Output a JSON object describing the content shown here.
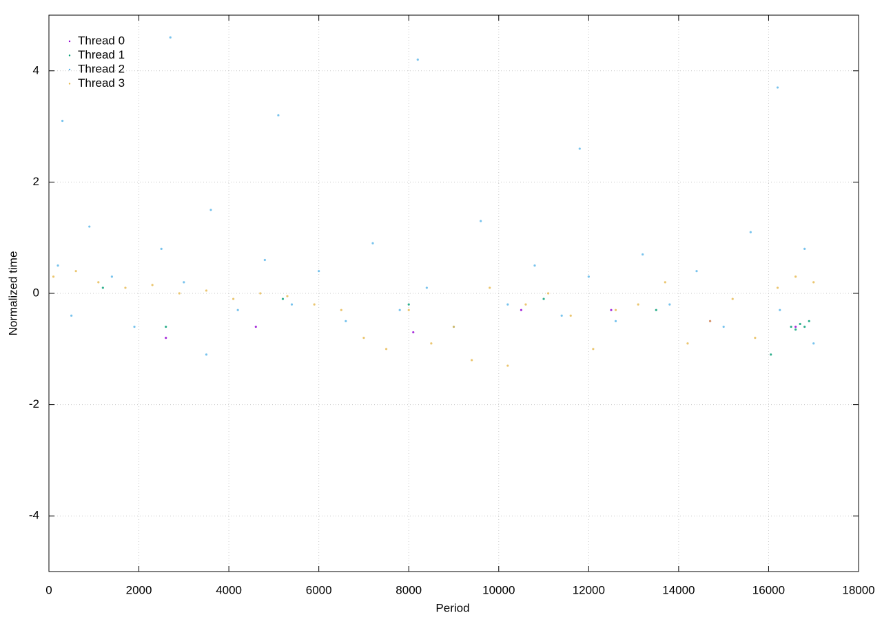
{
  "chart_data": {
    "type": "scatter",
    "xlabel": "Period",
    "ylabel": "Normalized time",
    "xlim": [
      0,
      18000
    ],
    "ylim": [
      -5,
      5
    ],
    "xticks": [
      0,
      2000,
      4000,
      6000,
      8000,
      10000,
      12000,
      14000,
      16000,
      18000
    ],
    "yticks": [
      -4,
      -2,
      0,
      2,
      4
    ],
    "grid": true,
    "legend": "upper-left",
    "series": [
      {
        "name": "Thread 0",
        "color": "#9400d3",
        "x": [
          2600,
          4600,
          8100,
          10500,
          12500,
          14700,
          16600
        ],
        "values": [
          -0.8,
          -0.6,
          -0.7,
          -0.3,
          -0.3,
          -0.5,
          -0.6
        ]
      },
      {
        "name": "Thread 1",
        "color": "#009e73",
        "x": [
          1200,
          2600,
          5200,
          8000,
          11000,
          13500,
          16050,
          16500,
          16600,
          16700,
          16800,
          16900
        ],
        "values": [
          0.1,
          -0.6,
          -0.1,
          -0.2,
          -0.1,
          -0.3,
          -1.1,
          -0.6,
          -0.65,
          -0.55,
          -0.6,
          -0.5
        ]
      },
      {
        "name": "Thread 2",
        "color": "#56b4e9",
        "x": [
          200,
          300,
          500,
          900,
          1400,
          1900,
          2500,
          2700,
          3000,
          3500,
          3600,
          4200,
          4800,
          5100,
          5400,
          6000,
          6600,
          7200,
          7800,
          8200,
          8400,
          9000,
          9600,
          10200,
          10800,
          11400,
          11800,
          12000,
          12600,
          13200,
          13800,
          14400,
          15000,
          15600,
          16200,
          16250,
          16800,
          17000
        ],
        "values": [
          0.5,
          3.1,
          -0.4,
          1.2,
          0.3,
          -0.6,
          0.8,
          4.6,
          0.2,
          -1.1,
          1.5,
          -0.3,
          0.6,
          3.2,
          -0.2,
          0.4,
          -0.5,
          0.9,
          -0.3,
          4.2,
          0.1,
          -0.6,
          1.3,
          -0.2,
          0.5,
          -0.4,
          2.6,
          0.3,
          -0.5,
          0.7,
          -0.2,
          0.4,
          -0.6,
          1.1,
          3.7,
          -0.3,
          0.8,
          -0.9
        ]
      },
      {
        "name": "Thread 3",
        "color": "#e6b84c",
        "x": [
          100,
          600,
          1100,
          1700,
          2300,
          2900,
          3500,
          4100,
          4700,
          5300,
          5900,
          6500,
          7000,
          7500,
          8000,
          8500,
          9000,
          9400,
          9800,
          10200,
          10600,
          11100,
          11600,
          12100,
          12600,
          13100,
          13700,
          14200,
          14700,
          15200,
          15700,
          16200,
          16600,
          17000
        ],
        "values": [
          0.3,
          0.4,
          0.2,
          0.1,
          0.15,
          0,
          0.05,
          -0.1,
          0,
          -0.05,
          -0.2,
          -0.3,
          -0.8,
          -1.0,
          -0.3,
          -0.9,
          -0.6,
          -1.2,
          0.1,
          -1.3,
          -0.2,
          0,
          -0.4,
          -1.0,
          -0.3,
          -0.2,
          0.2,
          -0.9,
          -0.5,
          -0.1,
          -0.8,
          0.1,
          0.3,
          0.2
        ]
      }
    ]
  }
}
